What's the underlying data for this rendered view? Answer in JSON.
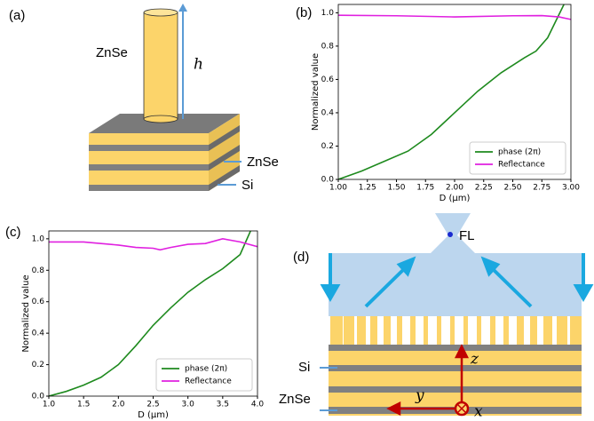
{
  "panel_labels": [
    "(a)",
    "(b)",
    "(c)",
    "(d)"
  ],
  "diagram_a": {
    "pillar_label": "ZnSe",
    "height_label": "h",
    "layer_labels": [
      "ZnSe",
      "Si"
    ]
  },
  "diagram_d": {
    "focus_label": "FL",
    "layer_labels": [
      "Si",
      "ZnSe"
    ],
    "axis_labels": [
      "z",
      "y",
      "x"
    ]
  },
  "chart_data": [
    {
      "type": "line",
      "xlabel": "D (μm)",
      "ylabel": "Normalized value",
      "xlim": [
        1,
        3
      ],
      "ylim": [
        0,
        1.05
      ],
      "xticks": [
        {
          "value": 1,
          "label": "1.00"
        },
        {
          "value": 1.25,
          "label": "1.25"
        },
        {
          "value": 1.5,
          "label": "1.50"
        },
        {
          "value": 1.75,
          "label": "1.75"
        },
        {
          "value": 2,
          "label": "2.00"
        },
        {
          "value": 2.25,
          "label": "2.25"
        },
        {
          "value": 2.5,
          "label": "2.50"
        },
        {
          "value": 2.75,
          "label": "2.75"
        },
        {
          "value": 3,
          "label": "3.00"
        }
      ],
      "yticks": [
        {
          "value": 0,
          "label": "0.0"
        },
        {
          "value": 0.2,
          "label": "0.2"
        },
        {
          "value": 0.4,
          "label": "0.4"
        },
        {
          "value": 0.6,
          "label": "0.6"
        },
        {
          "value": 0.8,
          "label": "0.8"
        },
        {
          "value": 1,
          "label": "1.0"
        }
      ],
      "legend": "lower right",
      "series": [
        {
          "name": "phase (2π)",
          "color": "#1e8a1e",
          "x": [
            1.0,
            1.2,
            1.4,
            1.6,
            1.8,
            2.0,
            2.2,
            2.4,
            2.6,
            2.7,
            2.8,
            2.94
          ],
          "values": [
            0,
            0.05,
            0.11,
            0.17,
            0.27,
            0.4,
            0.53,
            0.64,
            0.73,
            0.77,
            0.85,
            1.05
          ]
        },
        {
          "name": "Reflectance",
          "color": "#e020e0",
          "x": [
            1.0,
            1.5,
            2.0,
            2.5,
            2.75,
            2.9,
            3.0
          ],
          "values": [
            0.985,
            0.982,
            0.975,
            0.982,
            0.983,
            0.975,
            0.96
          ]
        }
      ]
    },
    {
      "type": "line",
      "xlabel": "D (μm)",
      "ylabel": "Normalized value",
      "xlim": [
        1,
        4
      ],
      "ylim": [
        0,
        1.05
      ],
      "xticks": [
        {
          "value": 1,
          "label": "1.0"
        },
        {
          "value": 1.5,
          "label": "1.5"
        },
        {
          "value": 2,
          "label": "2.0"
        },
        {
          "value": 2.5,
          "label": "2.5"
        },
        {
          "value": 3,
          "label": "3.0"
        },
        {
          "value": 3.5,
          "label": "3.5"
        },
        {
          "value": 4,
          "label": "4.0"
        }
      ],
      "yticks": [
        {
          "value": 0,
          "label": "0.0"
        },
        {
          "value": 0.2,
          "label": "0.2"
        },
        {
          "value": 0.4,
          "label": "0.4"
        },
        {
          "value": 0.6,
          "label": "0.6"
        },
        {
          "value": 0.8,
          "label": "0.8"
        },
        {
          "value": 1,
          "label": "1.0"
        }
      ],
      "legend": "lower right",
      "series": [
        {
          "name": "phase (2π)",
          "color": "#1e8a1e",
          "x": [
            1.0,
            1.25,
            1.5,
            1.75,
            2.0,
            2.25,
            2.5,
            2.75,
            3.0,
            3.25,
            3.5,
            3.75,
            3.9
          ],
          "values": [
            0,
            0.03,
            0.07,
            0.12,
            0.2,
            0.32,
            0.45,
            0.56,
            0.66,
            0.74,
            0.81,
            0.9,
            1.05
          ]
        },
        {
          "name": "Reflectance",
          "color": "#e020e0",
          "x": [
            1.0,
            1.5,
            2.0,
            2.25,
            2.5,
            2.6,
            2.75,
            3.0,
            3.25,
            3.5,
            3.75,
            4.0
          ],
          "values": [
            0.98,
            0.98,
            0.96,
            0.945,
            0.94,
            0.93,
            0.945,
            0.965,
            0.97,
            1.0,
            0.98,
            0.95
          ]
        }
      ]
    }
  ]
}
